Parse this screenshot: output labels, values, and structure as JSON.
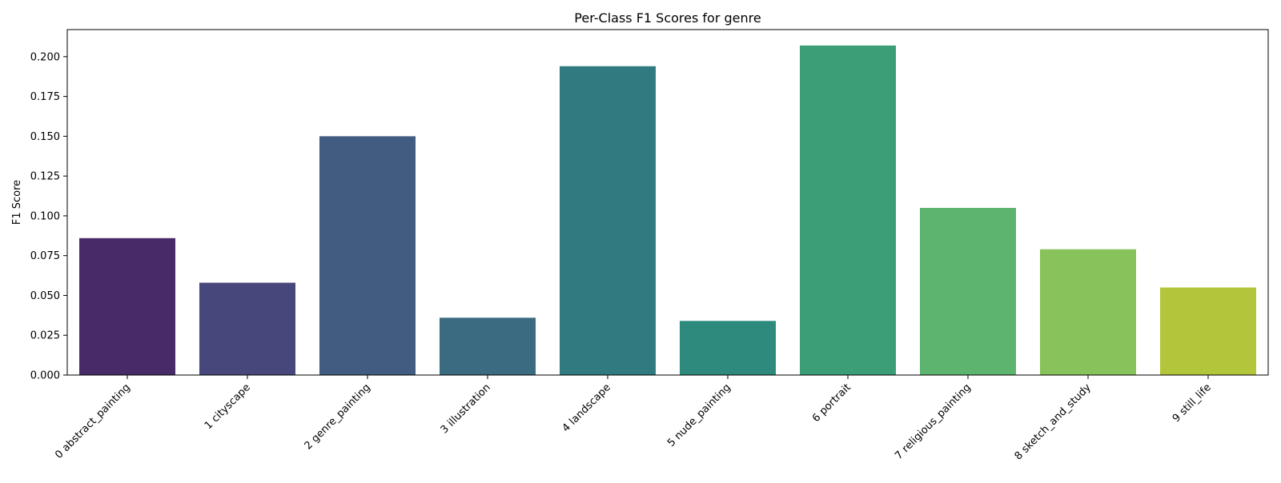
{
  "chart_data": {
    "type": "bar",
    "title": "Per-Class F1 Scores for genre",
    "xlabel": "",
    "ylabel": "F1 Score",
    "ylim": [
      0,
      0.217
    ],
    "yticks": [
      0.0,
      0.025,
      0.05,
      0.075,
      0.1,
      0.125,
      0.15,
      0.175,
      0.2
    ],
    "ytick_labels": [
      "0.000",
      "0.025",
      "0.050",
      "0.075",
      "0.100",
      "0.125",
      "0.150",
      "0.175",
      "0.200"
    ],
    "grid": false,
    "categories": [
      "0 abstract_painting",
      "1 cityscape",
      "2 genre_painting",
      "3 illustration",
      "4 landscape",
      "5 nude_painting",
      "6 portrait",
      "7 religious_painting",
      "8 sketch_and_study",
      "9 still_life"
    ],
    "values": [
      0.086,
      0.058,
      0.15,
      0.036,
      0.194,
      0.034,
      0.207,
      0.105,
      0.079,
      0.055
    ],
    "colors": [
      "#482a68",
      "#48477b",
      "#425b80",
      "#3a6b80",
      "#317b80",
      "#2d8a7d",
      "#3c9e76",
      "#5db46e",
      "#88c25a",
      "#b3c53a"
    ]
  }
}
